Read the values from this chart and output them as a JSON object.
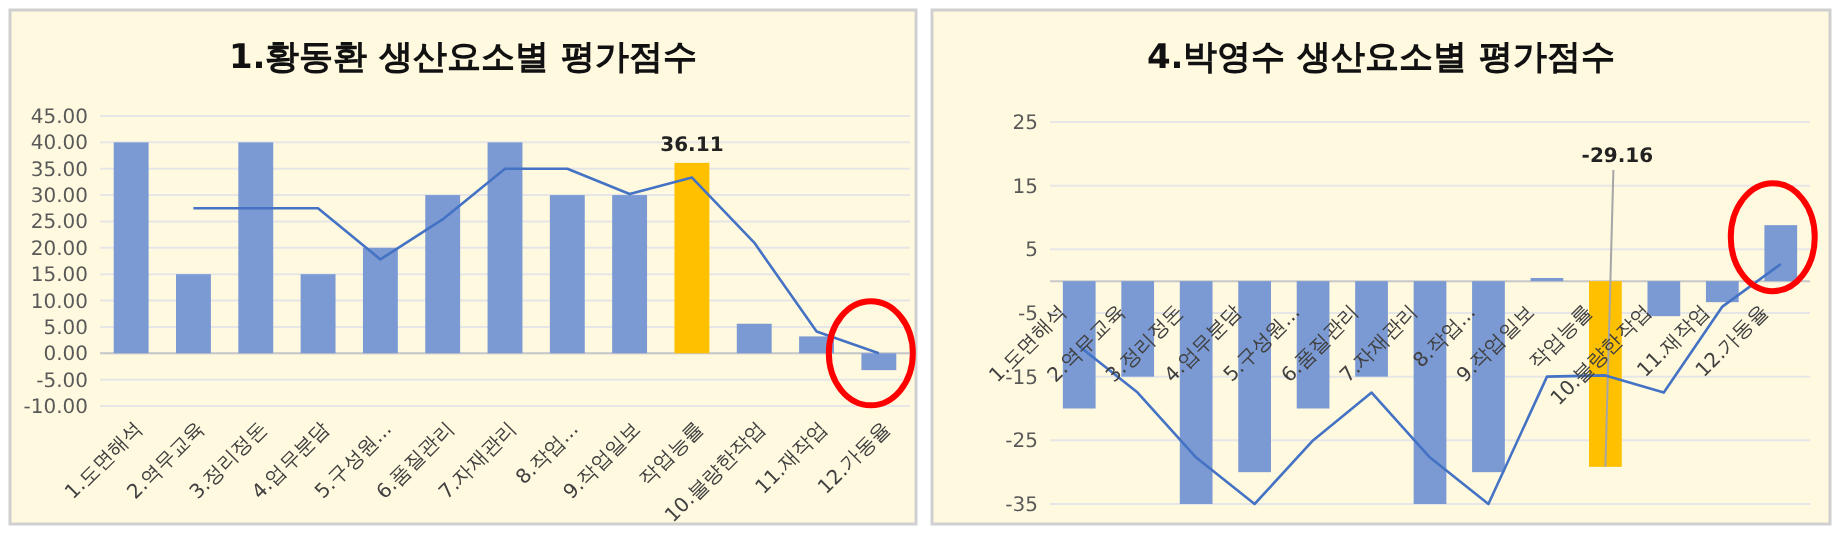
{
  "chart_data": [
    {
      "type": "bar",
      "title": "1.황동환 생산요소별 평가점수",
      "categories": [
        "1.도면해석",
        "2.역무교육",
        "3.정리정돈",
        "4.업무분담",
        "5.구성원...",
        "6.품질관리",
        "7.자재관리",
        "8.작업...",
        "9.작업일보",
        "작업능률",
        "10.불량한작업",
        "11.재작업",
        "12.가동율"
      ],
      "series": [
        {
          "type": "bar",
          "colors": [
            "#7b9ad3",
            "#7b9ad3",
            "#7b9ad3",
            "#7b9ad3",
            "#7b9ad3",
            "#7b9ad3",
            "#7b9ad3",
            "#7b9ad3",
            "#7b9ad3",
            "#ffc000",
            "#7b9ad3",
            "#7b9ad3",
            "#7b9ad3"
          ],
          "values": [
            40,
            15,
            40,
            15,
            20,
            30,
            40,
            30,
            30,
            36.11,
            5.6,
            3.2,
            -3.2
          ],
          "value_labels": [
            null,
            null,
            null,
            null,
            null,
            null,
            null,
            null,
            null,
            "36.11",
            null,
            null,
            null
          ]
        },
        {
          "type": "line",
          "color": "#4472c4",
          "values": [
            null,
            27.5,
            27.5,
            27.5,
            17.8,
            25.4,
            35,
            35,
            30.2,
            33.3,
            21,
            4.1,
            0
          ]
        }
      ],
      "ylim": [
        -10,
        45
      ],
      "yticks": [
        {
          "value": -10,
          "label": "-10.00"
        },
        {
          "value": -5,
          "label": "-5.00"
        },
        {
          "value": 0,
          "label": "0.00"
        },
        {
          "value": 5,
          "label": "5.00"
        },
        {
          "value": 10,
          "label": "10.00"
        },
        {
          "value": 15,
          "label": "15.00"
        },
        {
          "value": 20,
          "label": "20.00"
        },
        {
          "value": 25,
          "label": "25.00"
        },
        {
          "value": 30,
          "label": "30.00"
        },
        {
          "value": 35,
          "label": "35.00"
        },
        {
          "value": 40,
          "label": "40.00"
        },
        {
          "value": 45,
          "label": "45.00"
        }
      ],
      "grid": "y",
      "legend": false
    },
    {
      "type": "bar",
      "title": "4.박영수 생산요소별 평가점수",
      "categories": [
        "1.도면해석",
        "2.역무교육",
        "3.정리정돈",
        "4.업무분담",
        "5.구성원...",
        "6.품질관리",
        "7.자재관리",
        "8.작업...",
        "9.작업일보",
        "작업능률",
        "10.불량한작업",
        "11.재작업",
        "12.가동율"
      ],
      "series": [
        {
          "type": "bar",
          "colors": [
            "#7b9ad3",
            "#7b9ad3",
            "#7b9ad3",
            "#7b9ad3",
            "#7b9ad3",
            "#7b9ad3",
            "#7b9ad3",
            "#7b9ad3",
            "#7b9ad3",
            "#ffc000",
            "#7b9ad3",
            "#7b9ad3",
            "#7b9ad3"
          ],
          "values": [
            -20,
            -15,
            -35,
            -30,
            -20,
            -15,
            -35,
            -30,
            0.5,
            -29.16,
            -5.5,
            -3.3,
            8.8
          ],
          "value_labels": [
            null,
            null,
            null,
            null,
            null,
            null,
            null,
            null,
            null,
            "-29.16",
            null,
            null,
            null
          ]
        },
        {
          "type": "line",
          "color": "#4472c4",
          "values": [
            -10.2,
            -17.5,
            -27.7,
            -35,
            -25,
            -17.5,
            -27.7,
            -35,
            -15,
            -14.8,
            -17.5,
            -4,
            2.7
          ]
        }
      ],
      "ylim": [
        -35,
        25
      ],
      "yticks": [
        -35,
        -25,
        -15,
        -5,
        5,
        15,
        25
      ],
      "grid": "y",
      "legend": false
    }
  ]
}
